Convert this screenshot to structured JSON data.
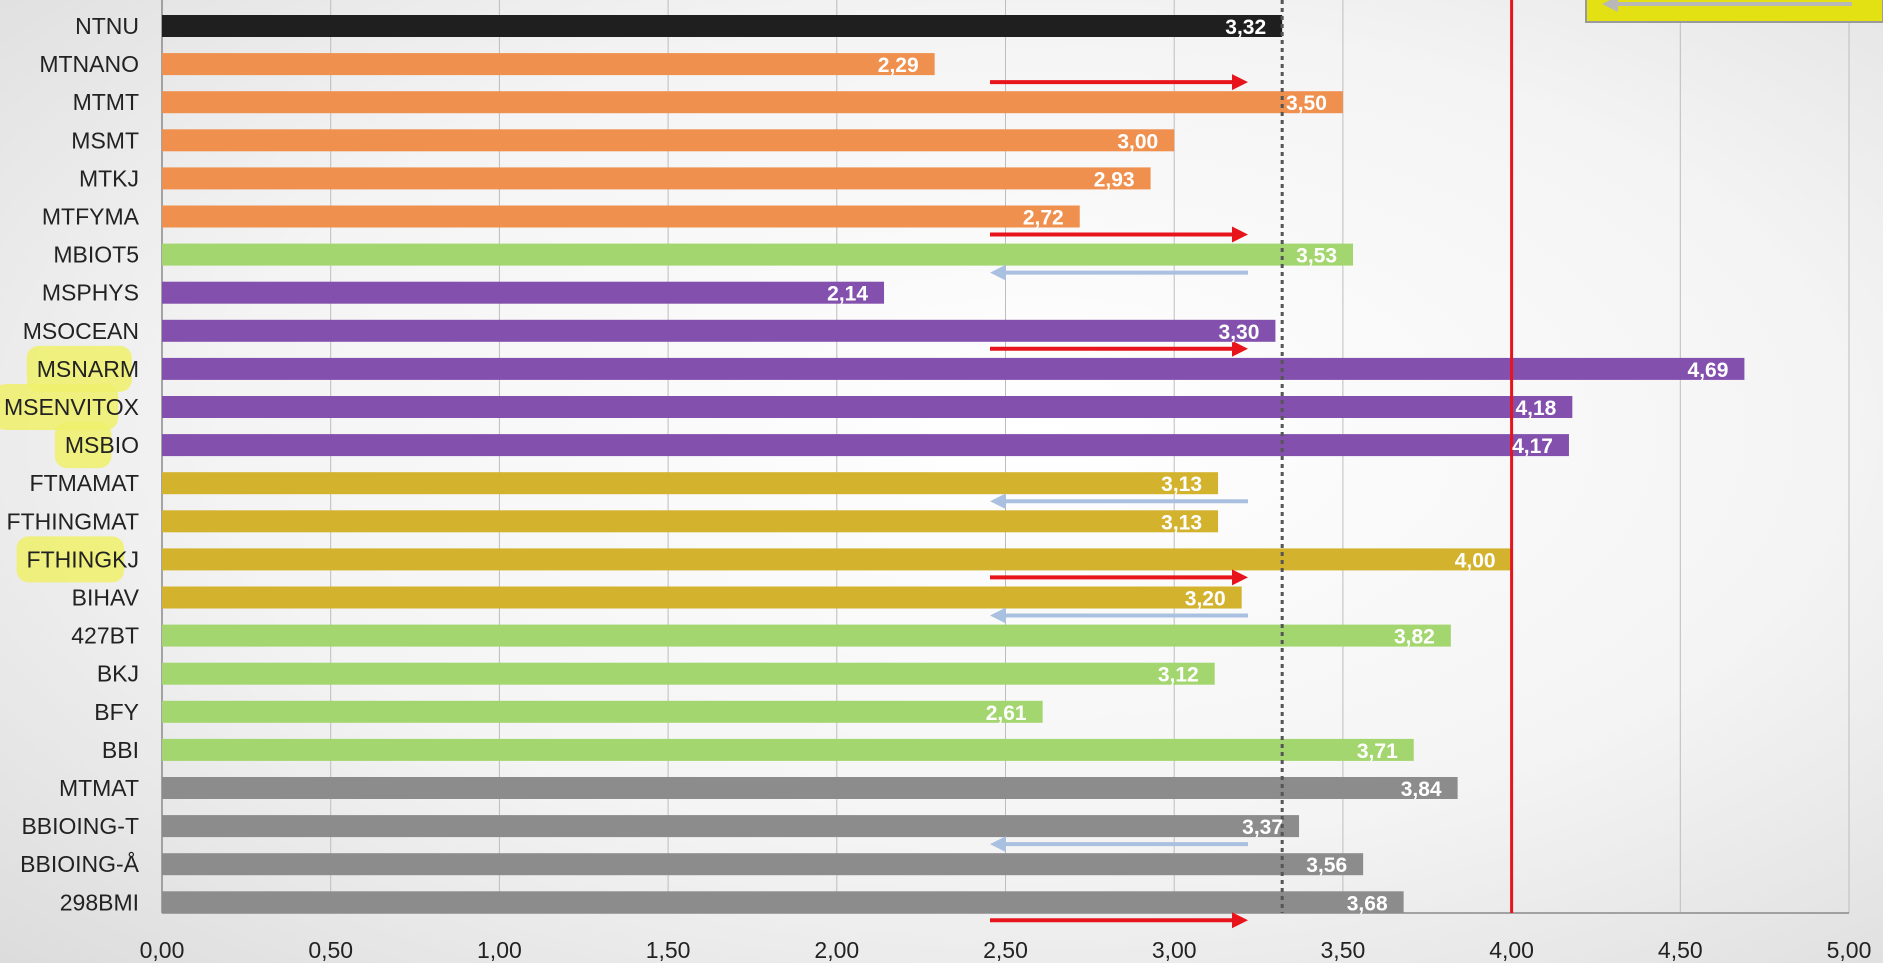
{
  "chart_data": {
    "type": "bar",
    "orientation": "horizontal",
    "title": "",
    "xlabel": "",
    "ylabel": "",
    "xlim": [
      0,
      5
    ],
    "x_ticks": [
      "0,00",
      "0,50",
      "1,00",
      "1,50",
      "2,00",
      "2,50",
      "3,00",
      "3,50",
      "4,00",
      "4,50",
      "5,00"
    ],
    "grid": "vertical",
    "legend": "none",
    "reference_lines": [
      {
        "type": "dotted",
        "value": 3.32,
        "color": "#555555"
      },
      {
        "type": "solid",
        "value": 4.0,
        "color": "#e8141c"
      }
    ],
    "bars": [
      {
        "category": "NTNU",
        "value": 3.32,
        "label": "3,32",
        "color": "#1f1f1f"
      },
      {
        "category": "MTNANO",
        "value": 2.29,
        "label": "2,29",
        "color": "#f0904e",
        "arrow": "right"
      },
      {
        "category": "MTMT",
        "value": 3.5,
        "label": "3,50",
        "color": "#f0904e"
      },
      {
        "category": "MSMT",
        "value": 3.0,
        "label": "3,00",
        "color": "#f0904e"
      },
      {
        "category": "MTKJ",
        "value": 2.93,
        "label": "2,93",
        "color": "#f0904e"
      },
      {
        "category": "MTFYMA",
        "value": 2.72,
        "label": "2,72",
        "color": "#f0904e",
        "arrow": "right"
      },
      {
        "category": "MBIOT5",
        "value": 3.53,
        "label": "3,53",
        "color": "#a3d66e",
        "arrow": "left"
      },
      {
        "category": "MSPHYS",
        "value": 2.14,
        "label": "2,14",
        "color": "#8351ad"
      },
      {
        "category": "MSOCEAN",
        "value": 3.3,
        "label": "3,30",
        "color": "#8351ad",
        "arrow": "right"
      },
      {
        "category": "MSNARM",
        "value": 4.69,
        "label": "4,69",
        "color": "#8351ad",
        "highlight_chars": 5
      },
      {
        "category": "MSENVITOX",
        "value": 4.18,
        "label": "4,18",
        "color": "#8351ad",
        "highlight_chars": 7
      },
      {
        "category": "MSBIO",
        "value": 4.17,
        "label": "4,17",
        "color": "#8351ad",
        "highlight_chars": 2
      },
      {
        "category": "FTMAMAT",
        "value": 3.13,
        "label": "3,13",
        "color": "#d3b22e",
        "arrow": "left"
      },
      {
        "category": "FTHINGMAT",
        "value": 3.13,
        "label": "3,13",
        "color": "#d3b22e"
      },
      {
        "category": "FTHINGKJ",
        "value": 4.0,
        "label": "4,00",
        "color": "#d3b22e",
        "highlight_chars": 6,
        "arrow": "right"
      },
      {
        "category": "BIHAV",
        "value": 3.2,
        "label": "3,20",
        "color": "#d3b22e",
        "arrow": "left"
      },
      {
        "category": "427BT",
        "value": 3.82,
        "label": "3,82",
        "color": "#a3d66e"
      },
      {
        "category": "BKJ",
        "value": 3.12,
        "label": "3,12",
        "color": "#a3d66e"
      },
      {
        "category": "BFY",
        "value": 2.61,
        "label": "2,61",
        "color": "#a3d66e"
      },
      {
        "category": "BBI",
        "value": 3.71,
        "label": "3,71",
        "color": "#a3d66e"
      },
      {
        "category": "MTMAT",
        "value": 3.84,
        "label": "3,84",
        "color": "#8c8c8c"
      },
      {
        "category": "BBIOING-T",
        "value": 3.37,
        "label": "3,37",
        "color": "#8c8c8c",
        "arrow": "left"
      },
      {
        "category": "BBIOING-Å",
        "value": 3.56,
        "label": "3,56",
        "color": "#8c8c8c"
      },
      {
        "category": "298BMI",
        "value": 3.68,
        "label": "3,68",
        "color": "#8c8c8c",
        "arrow": "right"
      }
    ]
  }
}
